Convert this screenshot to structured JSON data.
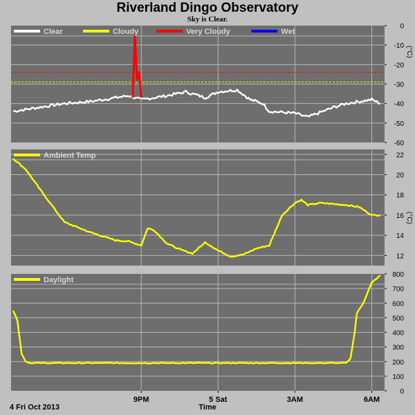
{
  "title": "Riverland Dingo Observatory",
  "subtitle": "Sky is Clear.",
  "footer": {
    "date": "4 Fri Oct 2013",
    "x_axis_label": "Time"
  },
  "colors": {
    "background": "#c0c0c0",
    "plot_bg": "#6e6e6e",
    "grid": "#b8b8b8",
    "clear": "#ffffff",
    "cloudy": "#ffff00",
    "very_cloudy": "#ff0000",
    "wet": "#0000ff",
    "ambient": "#ffff00",
    "daylight": "#ffff00"
  },
  "chart_data": [
    {
      "type": "line",
      "ylim": [
        -60,
        0
      ],
      "yticks": [
        0,
        -10,
        -20,
        -30,
        -40,
        -50,
        -60
      ],
      "ylabel": "(°C)",
      "xticks": [
        "9PM",
        "5 Sat",
        "3AM",
        "6AM"
      ],
      "legend": [
        "Clear",
        "Cloudy",
        "Very Cloudy",
        "Wet"
      ],
      "thresholds": [
        {
          "series": "Cloudy",
          "value": -29
        },
        {
          "series": "Very Cloudy",
          "value": -24
        }
      ],
      "series": [
        {
          "name": "Clear",
          "x": [
            "16:00",
            "17:00",
            "18:00",
            "19:00",
            "20:00",
            "20:30",
            "21:00",
            "22:00",
            "22:45",
            "23:30",
            "00:00",
            "00:45",
            "01:15",
            "01:45",
            "02:00",
            "03:00",
            "03:30",
            "04:30",
            "05:00",
            "06:00",
            "06:20"
          ],
          "values": [
            -44,
            -42,
            -40,
            -39,
            -37,
            -36,
            -38,
            -36,
            -34,
            -37,
            -34,
            -33,
            -38,
            -40,
            -44,
            -45,
            -47,
            -42,
            -40,
            -38,
            -40
          ]
        },
        {
          "name": "Very Cloudy",
          "x": [
            "20:40",
            "20:45",
            "20:50",
            "20:55",
            "21:00"
          ],
          "values": [
            -37,
            -5,
            -28,
            -24,
            -37
          ]
        }
      ]
    },
    {
      "type": "line",
      "ylim": [
        11,
        22.5
      ],
      "yticks": [
        22,
        20,
        18,
        16,
        14,
        12
      ],
      "ylabel": "(°C)",
      "xticks": [
        "9PM",
        "5 Sat",
        "3AM",
        "6AM"
      ],
      "legend": [
        "Ambient Temp"
      ],
      "series": [
        {
          "name": "Ambient Temp",
          "x": [
            "16:00",
            "16:30",
            "17:00",
            "18:00",
            "19:00",
            "20:00",
            "20:30",
            "21:00",
            "21:15",
            "21:30",
            "22:00",
            "22:30",
            "23:00",
            "23:30",
            "00:00",
            "00:30",
            "01:00",
            "01:30",
            "02:00",
            "02:30",
            "03:00",
            "03:15",
            "03:30",
            "04:00",
            "05:00",
            "05:30",
            "06:00",
            "06:20"
          ],
          "values": [
            21.6,
            20.5,
            18.7,
            15.3,
            14.3,
            13.5,
            13.4,
            13.0,
            14.7,
            14.5,
            13.2,
            12.6,
            12.2,
            13.3,
            12.5,
            11.9,
            12.1,
            12.7,
            13.0,
            16.0,
            17.2,
            17.5,
            17.0,
            17.2,
            17.0,
            16.8,
            16.0,
            16.0
          ]
        }
      ]
    },
    {
      "type": "line",
      "ylim": [
        0,
        800
      ],
      "yticks": [
        800,
        700,
        600,
        500,
        400,
        300,
        200,
        100,
        0
      ],
      "xticks": [
        "9PM",
        "5 Sat",
        "3AM",
        "6AM"
      ],
      "legend": [
        "Daylight"
      ],
      "series": [
        {
          "name": "Daylight",
          "x": [
            "16:00",
            "16:10",
            "16:20",
            "16:30",
            "16:40",
            "17:00",
            "18:00",
            "19:00",
            "20:00",
            "21:00",
            "22:00",
            "23:00",
            "00:00",
            "01:00",
            "02:00",
            "03:00",
            "04:00",
            "05:00",
            "05:10",
            "05:20",
            "05:25",
            "05:40",
            "06:00",
            "06:20"
          ],
          "values": [
            550,
            480,
            250,
            200,
            190,
            190,
            190,
            190,
            190,
            190,
            190,
            190,
            190,
            190,
            190,
            190,
            190,
            190,
            220,
            400,
            530,
            600,
            740,
            790
          ]
        }
      ]
    }
  ]
}
